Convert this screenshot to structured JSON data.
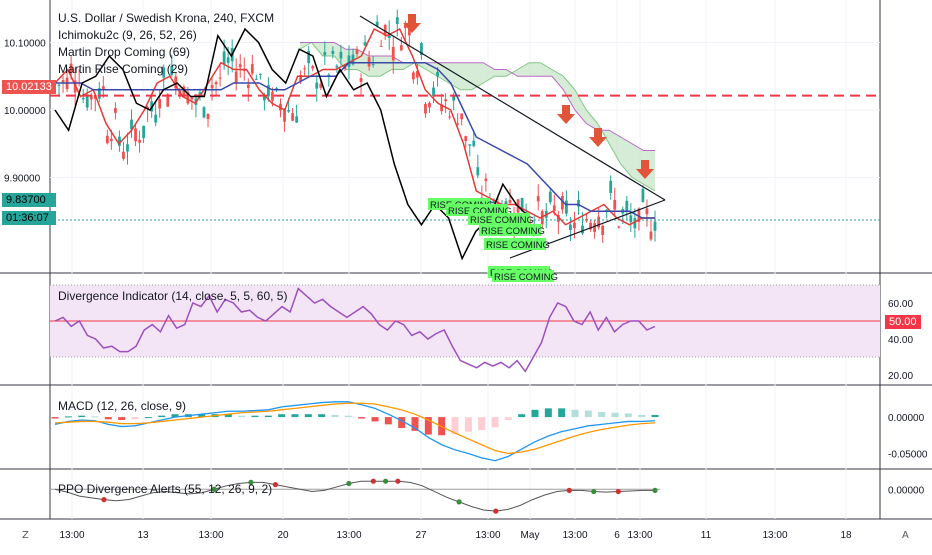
{
  "header": {
    "symbol_title": "U.S. Dollar / Swedish Krona, 240, FXCM",
    "indicators": [
      "Ichimoku2c (9, 26, 52, 26)",
      "Martin Drop Coming (69)",
      "Martin Rise Coming (29)"
    ]
  },
  "price_badges": {
    "hline_level": "10.02133",
    "current_price": "9.83700",
    "countdown": "01:36:07"
  },
  "colors": {
    "up": "#26a69a",
    "down": "#ef5350",
    "tenkan": "#e53935",
    "kijun": "#3949ab",
    "lagging": "#000000",
    "cloud_green": "#c8e6c9",
    "cloud_red": "#f8bbd0",
    "rsi_line": "#9c4fbf",
    "rsi_band": "#f3e5f5",
    "macd": "#2196f3",
    "signal": "#ff9800",
    "rise_label": "#66ff66",
    "arrow": "#e0553a"
  },
  "panes": {
    "divergence_title": "Divergence Indicator (14, close, 5, 5, 60, 5)",
    "macd_title": "MACD (12, 26, close, 9)",
    "ppo_title": "PPO Divergence Alerts (55, 12, 26, 9, 2)"
  },
  "signals": {
    "rise_labels": [
      "RISE COMING",
      "RISE COMING",
      "RISE COMING",
      "RISE COMING",
      "RISE COMING",
      "RISE COMING",
      "RISE COMING"
    ]
  },
  "bottom_bar": {
    "left_button": "Z",
    "right_button": "A"
  },
  "chart_data": [
    {
      "type": "candlestick",
      "title": "U.S. Dollar / Swedish Krona, 240, FXCM",
      "ylim": [
        9.76,
        10.16
      ],
      "y_ticks": [
        "10.10000",
        "10.00000",
        "9.90000"
      ],
      "x_ticks": [
        "13:00",
        "13",
        "13:00",
        "20",
        "13:00",
        "27",
        "13:00",
        "May",
        "13:00",
        "6",
        "13:00",
        "11",
        "13:00",
        "18"
      ],
      "horizontal_line": 10.02133,
      "last_price": 9.837,
      "series": [
        {
          "name": "Tenkan",
          "values": [
            10.04,
            10.06,
            10.02,
            10.03,
            9.98,
            9.95,
            9.97,
            10.0,
            10.04,
            10.05,
            10.02,
            10.01,
            10.04,
            10.07,
            10.06,
            10.06,
            10.03,
            10.01,
            10.0,
            10.05,
            10.05,
            10.06,
            10.06,
            10.07,
            10.08,
            10.12,
            10.11,
            10.12,
            10.08,
            10.03,
            10.01,
            10.0,
            9.95,
            9.88,
            9.87,
            9.86,
            9.86,
            9.85,
            9.84,
            9.85,
            9.83,
            9.84,
            9.85,
            9.86,
            9.84,
            9.83,
            9.84,
            9.84
          ]
        },
        {
          "name": "Kijun",
          "values": [
            10.04,
            10.04,
            10.04,
            10.03,
            10.03,
            10.03,
            10.03,
            10.03,
            10.03,
            10.03,
            10.03,
            10.03,
            10.03,
            10.03,
            10.04,
            10.04,
            10.04,
            10.03,
            10.03,
            10.04,
            10.05,
            10.05,
            10.05,
            10.07,
            10.07,
            10.07,
            10.07,
            10.07,
            10.07,
            10.07,
            10.06,
            10.04,
            10.0,
            9.96,
            9.95,
            9.94,
            9.93,
            9.92,
            9.9,
            9.88,
            9.86,
            9.86,
            9.85,
            9.85,
            9.85,
            9.85,
            9.84,
            9.84
          ]
        },
        {
          "name": "Lagging",
          "values": [
            10.0,
            9.97,
            10.04,
            10.05,
            10.08,
            10.06,
            10.01,
            10.0,
            10.03,
            10.04,
            10.02,
            10.02,
            10.11,
            10.08,
            10.12,
            10.1,
            10.06,
            10.04,
            10.09,
            10.08,
            10.02,
            10.06,
            10.03,
            10.04,
            10.0,
            9.92,
            9.86,
            9.83,
            9.86,
            9.84,
            9.78,
            9.82,
            9.84,
            9.89,
            9.86,
            9.84
          ]
        },
        {
          "name": "Senkou A",
          "values": [
            10.09,
            10.1,
            10.08,
            10.08,
            10.06,
            10.06,
            10.05,
            10.05,
            10.06,
            10.06,
            10.07,
            10.06,
            10.05,
            10.04,
            10.03,
            10.03,
            10.04,
            10.05,
            10.05,
            10.06,
            10.07,
            10.07,
            10.06,
            10.05,
            10.03,
            10.0,
            9.98,
            9.95,
            9.92,
            9.9,
            9.89,
            9.88
          ]
        },
        {
          "name": "Senkou B",
          "values": [
            10.1,
            10.1,
            10.1,
            10.1,
            10.09,
            10.09,
            10.08,
            10.08,
            10.08,
            10.07,
            10.07,
            10.07,
            10.07,
            10.07,
            10.07,
            10.07,
            10.07,
            10.06,
            10.06,
            10.05,
            10.05,
            10.05,
            10.05,
            10.03,
            10.0,
            9.98,
            9.97,
            9.97,
            9.96,
            9.95,
            9.94,
            9.94
          ]
        }
      ]
    },
    {
      "type": "line",
      "title": "Divergence Indicator (14, close, 5, 5, 60, 5)",
      "ylim": [
        15,
        75
      ],
      "y_ticks": [
        "60.00",
        "40.00",
        "20.00"
      ],
      "current_value": "50.00",
      "reference_line": 50,
      "band": [
        30,
        70
      ],
      "series": [
        {
          "name": "RSI",
          "values": [
            50,
            52,
            47,
            50,
            42,
            40,
            35,
            36,
            33,
            33,
            36,
            45,
            48,
            44,
            53,
            46,
            48,
            60,
            58,
            64,
            55,
            62,
            60,
            55,
            56,
            52,
            50,
            54,
            58,
            55,
            68,
            64,
            60,
            62,
            58,
            55,
            52,
            55,
            58,
            54,
            48,
            45,
            50,
            48,
            42,
            44,
            40,
            43,
            45,
            36,
            28,
            26,
            24,
            27,
            25,
            27,
            24,
            28,
            22,
            30,
            38,
            52,
            60,
            58,
            50,
            48,
            55,
            45,
            52,
            44,
            48,
            50,
            50,
            45,
            47
          ]
        }
      ]
    },
    {
      "type": "bar",
      "title": "MACD (12, 26, close, 9)",
      "ylim": [
        -0.07,
        0.04
      ],
      "y_ticks": [
        "0.00000",
        "-0.05000"
      ],
      "series": [
        {
          "name": "MACD",
          "values": [
            -0.01,
            -0.006,
            -0.004,
            -0.005,
            -0.01,
            -0.013,
            -0.012,
            -0.008,
            -0.004,
            0.0,
            0.002,
            0.004,
            0.006,
            0.008,
            0.008,
            0.009,
            0.01,
            0.014,
            0.016,
            0.018,
            0.02,
            0.021,
            0.021,
            0.017,
            0.012,
            0.004,
            -0.005,
            -0.015,
            -0.028,
            -0.038,
            -0.045,
            -0.05,
            -0.056,
            -0.06,
            -0.054,
            -0.044,
            -0.034,
            -0.026,
            -0.02,
            -0.016,
            -0.012,
            -0.01,
            -0.008,
            -0.006,
            -0.006,
            -0.005
          ]
        },
        {
          "name": "Signal",
          "values": [
            -0.008,
            -0.007,
            -0.006,
            -0.006,
            -0.007,
            -0.009,
            -0.009,
            -0.008,
            -0.006,
            -0.004,
            -0.002,
            0.0,
            0.002,
            0.004,
            0.006,
            0.007,
            0.008,
            0.01,
            0.012,
            0.014,
            0.016,
            0.018,
            0.019,
            0.019,
            0.018,
            0.014,
            0.01,
            0.004,
            -0.004,
            -0.013,
            -0.022,
            -0.03,
            -0.038,
            -0.046,
            -0.05,
            -0.048,
            -0.044,
            -0.038,
            -0.032,
            -0.026,
            -0.021,
            -0.017,
            -0.014,
            -0.011,
            -0.009,
            -0.008
          ]
        },
        {
          "name": "Histogram",
          "values": [
            -0.002,
            0.001,
            0.002,
            0.001,
            -0.003,
            -0.004,
            -0.003,
            0.0,
            0.002,
            0.004,
            0.004,
            0.004,
            0.004,
            0.004,
            0.002,
            0.002,
            0.002,
            0.004,
            0.004,
            0.004,
            0.004,
            0.003,
            0.002,
            -0.002,
            -0.006,
            -0.01,
            -0.015,
            -0.019,
            -0.024,
            -0.025,
            -0.023,
            -0.02,
            -0.018,
            -0.014,
            -0.004,
            0.004,
            0.01,
            0.012,
            0.012,
            0.01,
            0.009,
            0.007,
            0.006,
            0.005,
            0.003,
            0.003
          ]
        }
      ]
    },
    {
      "type": "line",
      "title": "PPO Divergence Alerts (55, 12, 26, 9, 2)",
      "ylim": [
        -0.05,
        0.03
      ],
      "y_ticks": [
        "0.00000"
      ],
      "series": [
        {
          "name": "PPO",
          "values": [
            0.0,
            -0.005,
            -0.012,
            -0.015,
            -0.018,
            -0.02,
            -0.018,
            -0.012,
            -0.006,
            -0.004,
            -0.006,
            -0.008,
            -0.006,
            0.0,
            0.006,
            0.01,
            0.012,
            0.012,
            0.008,
            0.004,
            0.0,
            -0.004,
            -0.002,
            0.004,
            0.01,
            0.014,
            0.014,
            0.014,
            0.014,
            0.012,
            0.006,
            -0.004,
            -0.014,
            -0.022,
            -0.03,
            -0.036,
            -0.038,
            -0.035,
            -0.028,
            -0.018,
            -0.01,
            -0.004,
            -0.002,
            -0.002,
            -0.004,
            -0.005,
            -0.004,
            -0.003,
            -0.002,
            -0.002
          ]
        }
      ]
    }
  ]
}
